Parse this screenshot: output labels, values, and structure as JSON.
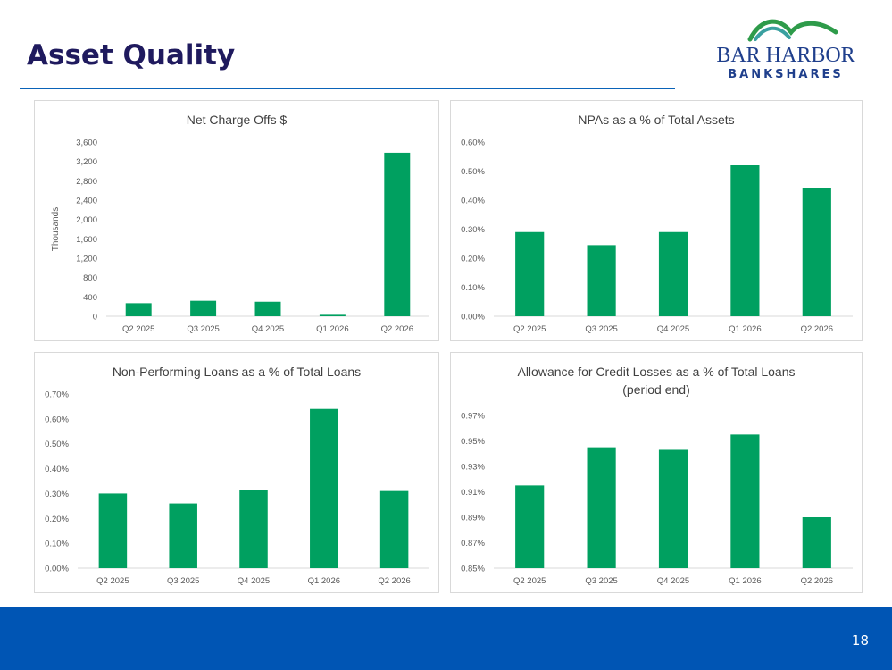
{
  "slide": {
    "title": "Asset Quality",
    "page_number": "18"
  },
  "logo": {
    "line1": "BAR HARBOR",
    "line2": "BANKSHARES",
    "colors": {
      "text": "#1f3f8c",
      "wave_green": "#2e9b4a",
      "wave_teal": "#3aa0a0"
    }
  },
  "colors": {
    "bar": "#00a060",
    "title": "#1f1a5e",
    "footer": "#0055b4",
    "rule": "#0a63b8"
  },
  "chart_data": [
    {
      "type": "bar",
      "title": "Net Charge Offs $",
      "ylabel": "Thousands",
      "xlabel": "",
      "categories": [
        "Q2 2025",
        "Q3 2025",
        "Q4 2025",
        "Q1 2026",
        "Q2 2026"
      ],
      "values": [
        270,
        320,
        300,
        30,
        3380
      ],
      "ylim": [
        0,
        3600
      ],
      "yticks": [
        "0",
        "400",
        "800",
        "1,200",
        "1,600",
        "2,000",
        "2,400",
        "2,800",
        "3,200",
        "3,600"
      ],
      "grid": false,
      "legend": "none"
    },
    {
      "type": "bar",
      "title": "NPAs as a % of Total Assets",
      "ylabel": "",
      "xlabel": "",
      "categories": [
        "Q2 2025",
        "Q3 2025",
        "Q4 2025",
        "Q1 2026",
        "Q2 2026"
      ],
      "values": [
        0.29,
        0.245,
        0.29,
        0.52,
        0.44
      ],
      "ylim": [
        0,
        0.6
      ],
      "yticks": [
        "0.00%",
        "0.10%",
        "0.20%",
        "0.30%",
        "0.40%",
        "0.50%",
        "0.60%"
      ],
      "grid": false,
      "legend": "none"
    },
    {
      "type": "bar",
      "title": "Non-Performing Loans as a % of Total Loans",
      "ylabel": "",
      "xlabel": "",
      "categories": [
        "Q2 2025",
        "Q3 2025",
        "Q4 2025",
        "Q1 2026",
        "Q2 2026"
      ],
      "values": [
        0.3,
        0.26,
        0.315,
        0.64,
        0.31
      ],
      "ylim": [
        0,
        0.7
      ],
      "yticks": [
        "0.00%",
        "0.10%",
        "0.20%",
        "0.30%",
        "0.40%",
        "0.50%",
        "0.60%",
        "0.70%"
      ],
      "grid": false,
      "legend": "none"
    },
    {
      "type": "bar",
      "title": "Allowance for Credit Losses as a % of Total Loans",
      "subtitle": "(period end)",
      "ylabel": "",
      "xlabel": "",
      "categories": [
        "Q2 2025",
        "Q3 2025",
        "Q4 2025",
        "Q1 2026",
        "Q2 2026"
      ],
      "values": [
        0.915,
        0.945,
        0.943,
        0.955,
        0.89
      ],
      "ylim": [
        0.85,
        0.97
      ],
      "yticks": [
        "0.85%",
        "0.87%",
        "0.89%",
        "0.91%",
        "0.93%",
        "0.95%",
        "0.97%"
      ],
      "grid": false,
      "legend": "none"
    }
  ]
}
